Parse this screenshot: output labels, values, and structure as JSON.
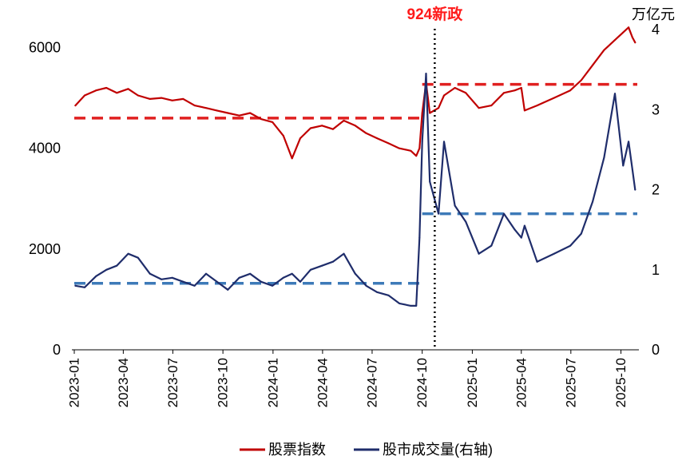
{
  "chart_data": {
    "type": "line",
    "title": "",
    "xlabel": "",
    "ylabel": "",
    "y2label": "万亿元",
    "x_ticks": [
      "2023-01",
      "2023-04",
      "2023-07",
      "2023-10",
      "2024-01",
      "2024-04",
      "2024-07",
      "2024-10",
      "2025-01",
      "2025-04",
      "2025-07",
      "2025-10"
    ],
    "x_range": [
      "2023-01-01",
      "2025-10-31"
    ],
    "ylim": [
      0,
      6500
    ],
    "y_ticks": [
      0,
      2000,
      4000,
      6000
    ],
    "y2lim": [
      0,
      4
    ],
    "y2_ticks": [
      0,
      1,
      2,
      3,
      4
    ],
    "grid": false,
    "legend_position": "bottom-center",
    "series": [
      {
        "name": "股票指数",
        "axis": "left",
        "color": "#c00000",
        "points": [
          [
            "2023-01-03",
            4850
          ],
          [
            "2023-01-20",
            5050
          ],
          [
            "2023-02-10",
            5150
          ],
          [
            "2023-03-01",
            5200
          ],
          [
            "2023-03-20",
            5100
          ],
          [
            "2023-04-10",
            5180
          ],
          [
            "2023-04-28",
            5050
          ],
          [
            "2023-05-20",
            4980
          ],
          [
            "2023-06-10",
            5000
          ],
          [
            "2023-06-30",
            4950
          ],
          [
            "2023-07-20",
            4980
          ],
          [
            "2023-08-10",
            4850
          ],
          [
            "2023-08-31",
            4800
          ],
          [
            "2023-09-20",
            4750
          ],
          [
            "2023-10-10",
            4700
          ],
          [
            "2023-10-31",
            4650
          ],
          [
            "2023-11-20",
            4700
          ],
          [
            "2023-12-10",
            4580
          ],
          [
            "2023-12-31",
            4520
          ],
          [
            "2024-01-20",
            4250
          ],
          [
            "2024-02-05",
            3800
          ],
          [
            "2024-02-20",
            4200
          ],
          [
            "2024-03-10",
            4400
          ],
          [
            "2024-03-31",
            4450
          ],
          [
            "2024-04-20",
            4380
          ],
          [
            "2024-05-10",
            4550
          ],
          [
            "2024-05-31",
            4450
          ],
          [
            "2024-06-20",
            4300
          ],
          [
            "2024-07-10",
            4200
          ],
          [
            "2024-07-31",
            4100
          ],
          [
            "2024-08-20",
            4000
          ],
          [
            "2024-09-10",
            3950
          ],
          [
            "2024-09-20",
            3850
          ],
          [
            "2024-09-26",
            4000
          ],
          [
            "2024-10-01",
            4700
          ],
          [
            "2024-10-08",
            5300
          ],
          [
            "2024-10-15",
            4700
          ],
          [
            "2024-10-31",
            4800
          ],
          [
            "2024-11-10",
            5050
          ],
          [
            "2024-11-30",
            5200
          ],
          [
            "2024-12-20",
            5100
          ],
          [
            "2025-01-13",
            4800
          ],
          [
            "2025-02-05",
            4850
          ],
          [
            "2025-02-28",
            5100
          ],
          [
            "2025-03-20",
            5150
          ],
          [
            "2025-04-01",
            5200
          ],
          [
            "2025-04-07",
            4750
          ],
          [
            "2025-04-30",
            4850
          ],
          [
            "2025-05-31",
            5000
          ],
          [
            "2025-06-30",
            5150
          ],
          [
            "2025-07-20",
            5350
          ],
          [
            "2025-08-10",
            5650
          ],
          [
            "2025-08-31",
            5950
          ],
          [
            "2025-09-20",
            6150
          ],
          [
            "2025-10-05",
            6300
          ],
          [
            "2025-10-15",
            6400
          ],
          [
            "2025-10-22",
            6200
          ],
          [
            "2025-10-27",
            6100
          ]
        ]
      },
      {
        "name": "股市成交量(右轴)",
        "axis": "right",
        "color": "#1f2d6b",
        "points": [
          [
            "2023-01-03",
            0.8
          ],
          [
            "2023-01-20",
            0.78
          ],
          [
            "2023-02-10",
            0.92
          ],
          [
            "2023-03-01",
            1.0
          ],
          [
            "2023-03-20",
            1.05
          ],
          [
            "2023-04-10",
            1.2
          ],
          [
            "2023-04-28",
            1.15
          ],
          [
            "2023-05-20",
            0.95
          ],
          [
            "2023-06-10",
            0.88
          ],
          [
            "2023-06-30",
            0.9
          ],
          [
            "2023-07-20",
            0.85
          ],
          [
            "2023-08-10",
            0.8
          ],
          [
            "2023-08-31",
            0.95
          ],
          [
            "2023-09-20",
            0.85
          ],
          [
            "2023-10-10",
            0.75
          ],
          [
            "2023-10-31",
            0.9
          ],
          [
            "2023-11-20",
            0.95
          ],
          [
            "2023-12-10",
            0.85
          ],
          [
            "2023-12-31",
            0.8
          ],
          [
            "2024-01-20",
            0.9
          ],
          [
            "2024-02-05",
            0.95
          ],
          [
            "2024-02-20",
            0.85
          ],
          [
            "2024-03-10",
            1.0
          ],
          [
            "2024-03-31",
            1.05
          ],
          [
            "2024-04-20",
            1.1
          ],
          [
            "2024-05-10",
            1.2
          ],
          [
            "2024-05-31",
            0.95
          ],
          [
            "2024-06-20",
            0.8
          ],
          [
            "2024-07-10",
            0.72
          ],
          [
            "2024-07-31",
            0.68
          ],
          [
            "2024-08-20",
            0.58
          ],
          [
            "2024-09-10",
            0.55
          ],
          [
            "2024-09-20",
            0.55
          ],
          [
            "2024-09-26",
            1.4
          ],
          [
            "2024-10-01",
            2.6
          ],
          [
            "2024-10-08",
            3.45
          ],
          [
            "2024-10-15",
            2.1
          ],
          [
            "2024-10-31",
            1.7
          ],
          [
            "2024-11-10",
            2.6
          ],
          [
            "2024-11-30",
            1.8
          ],
          [
            "2024-12-20",
            1.6
          ],
          [
            "2025-01-13",
            1.2
          ],
          [
            "2025-02-05",
            1.3
          ],
          [
            "2025-02-28",
            1.7
          ],
          [
            "2025-03-20",
            1.5
          ],
          [
            "2025-04-01",
            1.4
          ],
          [
            "2025-04-07",
            1.55
          ],
          [
            "2025-04-30",
            1.1
          ],
          [
            "2025-05-31",
            1.2
          ],
          [
            "2025-06-30",
            1.3
          ],
          [
            "2025-07-20",
            1.45
          ],
          [
            "2025-08-10",
            1.85
          ],
          [
            "2025-08-31",
            2.4
          ],
          [
            "2025-09-20",
            3.2
          ],
          [
            "2025-10-05",
            2.3
          ],
          [
            "2025-10-15",
            2.6
          ],
          [
            "2025-10-22",
            2.25
          ],
          [
            "2025-10-27",
            2.0
          ]
        ]
      }
    ],
    "reference_lines": [
      {
        "axis": "left",
        "value": 4600,
        "from": "2023-01-01",
        "to": "2024-09-26",
        "color": "#e02020",
        "style": "dashed"
      },
      {
        "axis": "left",
        "value": 5270,
        "from": "2024-10-01",
        "to": "2025-10-31",
        "color": "#e02020",
        "style": "dashed"
      },
      {
        "axis": "right",
        "value": 0.83,
        "from": "2023-01-01",
        "to": "2024-09-26",
        "color": "#3d7ab8",
        "style": "dashed"
      },
      {
        "axis": "right",
        "value": 1.7,
        "from": "2024-10-01",
        "to": "2025-10-31",
        "color": "#3d7ab8",
        "style": "dashed"
      }
    ],
    "event_marker": {
      "date": "2024-10-24",
      "label": "924新政",
      "label_color": "#ff1a1a",
      "line_color": "#000000",
      "style": "dotted"
    }
  }
}
